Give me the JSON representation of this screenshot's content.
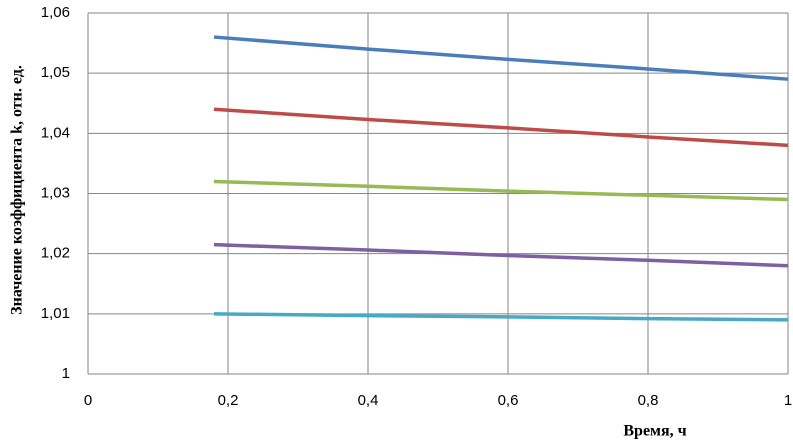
{
  "chart_data": {
    "type": "line",
    "x_label": "Время, ч",
    "y_label": "Значение коэффициента k, отн. ед.",
    "x": [
      0.18,
      0.4,
      0.6,
      0.8,
      1
    ],
    "series": [
      {
        "color": "#4a7ebb",
        "values": [
          1.056,
          1.054,
          1.0523,
          1.0507,
          1.049
        ]
      },
      {
        "color": "#be4b48",
        "values": [
          1.044,
          1.0423,
          1.0409,
          1.0394,
          1.038
        ]
      },
      {
        "color": "#98b954",
        "values": [
          1.032,
          1.0312,
          1.0304,
          1.0297,
          1.029
        ]
      },
      {
        "color": "#7d60a0",
        "values": [
          1.0215,
          1.0206,
          1.0197,
          1.0189,
          1.018
        ]
      },
      {
        "color": "#46aac5",
        "values": [
          1.01,
          1.0097,
          1.0095,
          1.0092,
          1.009
        ]
      }
    ],
    "xlim": [
      0,
      1
    ],
    "xticks": [
      0,
      {
        "value": 0.2,
        "label": "0,2"
      },
      {
        "value": 0.4,
        "label": "0,4"
      },
      {
        "value": 0.6,
        "label": "0,6"
      },
      {
        "value": 0.8,
        "label": "0,8"
      },
      1
    ],
    "ylim": [
      1,
      1.06
    ],
    "yticks": [
      1,
      {
        "value": 1.01,
        "label": "1,01"
      },
      {
        "value": 1.02,
        "label": "1,02"
      },
      {
        "value": 1.03,
        "label": "1,03"
      },
      {
        "value": 1.04,
        "label": "1,04"
      },
      {
        "value": 1.05,
        "label": "1,05"
      },
      {
        "value": 1.06,
        "label": "1,06"
      }
    ],
    "grid": true
  }
}
